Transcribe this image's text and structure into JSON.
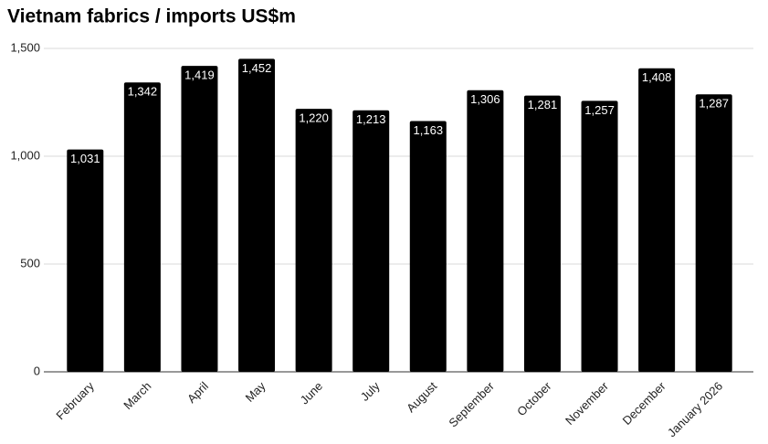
{
  "chart_data": {
    "type": "bar",
    "title": "Vietnam fabrics / imports US$m",
    "categories": [
      "February",
      "March",
      "April",
      "May",
      "June",
      "July",
      "August",
      "September",
      "October",
      "November",
      "December",
      "January 2026"
    ],
    "values": [
      1031,
      1342,
      1419,
      1452,
      1220,
      1213,
      1163,
      1306,
      1281,
      1257,
      1408,
      1287
    ],
    "value_labels": [
      "1,031",
      "1,342",
      "1,419",
      "1,452",
      "1,220",
      "1,213",
      "1,163",
      "1,306",
      "1,281",
      "1,257",
      "1,408",
      "1,287"
    ],
    "color": "#000000",
    "ylim": [
      0,
      1500
    ],
    "yticks": [
      0,
      500,
      {
        "value": 1000,
        "label": "1,000"
      },
      {
        "value": 1500,
        "label": "1,500"
      }
    ],
    "grid": true
  }
}
